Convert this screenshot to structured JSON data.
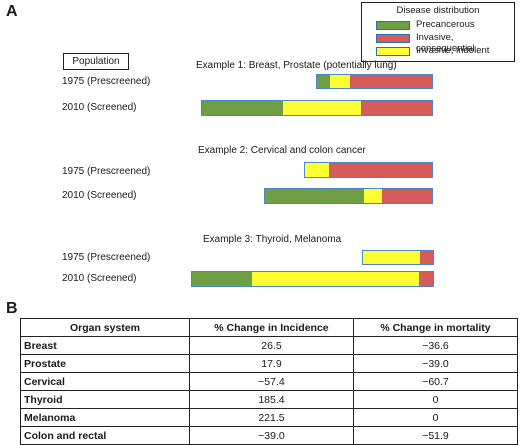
{
  "panel_a": {
    "letter": "A",
    "legend": {
      "title": "Disease distribution",
      "items": [
        {
          "label": "Precancerous",
          "color": "#6e9f45"
        },
        {
          "label": "Invasive, consequential",
          "color": "#d65c5c"
        },
        {
          "label": "Invasive, indolent",
          "color": "#ffff33"
        }
      ]
    },
    "population_label": "Population",
    "examples": [
      {
        "title": "Example 1: Breast, Prostate  (potentially lung)",
        "rows": [
          {
            "label": "1975 (Prescreened)",
            "segments": [
              {
                "type": "precancerous",
                "fraction": 0.11
              },
              {
                "type": "indolent",
                "fraction": 0.18
              },
              {
                "type": "consequential",
                "fraction": 0.71
              }
            ]
          },
          {
            "label": "2010 (Screened)",
            "segments": [
              {
                "type": "precancerous",
                "fraction": 0.35
              },
              {
                "type": "indolent",
                "fraction": 0.34
              },
              {
                "type": "consequential",
                "fraction": 0.31
              }
            ]
          }
        ]
      },
      {
        "title": "Example 2: Cervical and colon cancer",
        "rows": [
          {
            "label": "1975 (Prescreened)",
            "segments": [
              {
                "type": "indolent",
                "fraction": 0.19
              },
              {
                "type": "consequential",
                "fraction": 0.81
              }
            ]
          },
          {
            "label": "2010 (Screened)",
            "segments": [
              {
                "type": "precancerous",
                "fraction": 0.59
              },
              {
                "type": "indolent",
                "fraction": 0.11
              },
              {
                "type": "consequential",
                "fraction": 0.3
              }
            ]
          }
        ]
      },
      {
        "title": "Example 3: Thyroid, Melanoma",
        "rows": [
          {
            "label": "1975 (Prescreened)",
            "segments": [
              {
                "type": "indolent",
                "fraction": 0.81
              },
              {
                "type": "consequential",
                "fraction": 0.19
              }
            ]
          },
          {
            "label": "2010 (Screened)",
            "segments": [
              {
                "type": "precancerous",
                "fraction": 0.25
              },
              {
                "type": "indolent",
                "fraction": 0.69
              },
              {
                "type": "consequential",
                "fraction": 0.06
              }
            ]
          }
        ]
      }
    ]
  },
  "panel_b": {
    "letter": "B",
    "headers": [
      "Organ system",
      "% Change in Incidence",
      "% Change in mortality"
    ],
    "rows": [
      [
        "Breast",
        "26.5",
        "−36.6"
      ],
      [
        "Prostate",
        "17.9",
        "−39.0"
      ],
      [
        "Cervical",
        "−57.4",
        "−60.7"
      ],
      [
        "Thyroid",
        "185.4",
        "0"
      ],
      [
        "Melanoma",
        "221.5",
        "0"
      ],
      [
        "Colon and rectal",
        "−39.0",
        "−51.9"
      ]
    ]
  }
}
